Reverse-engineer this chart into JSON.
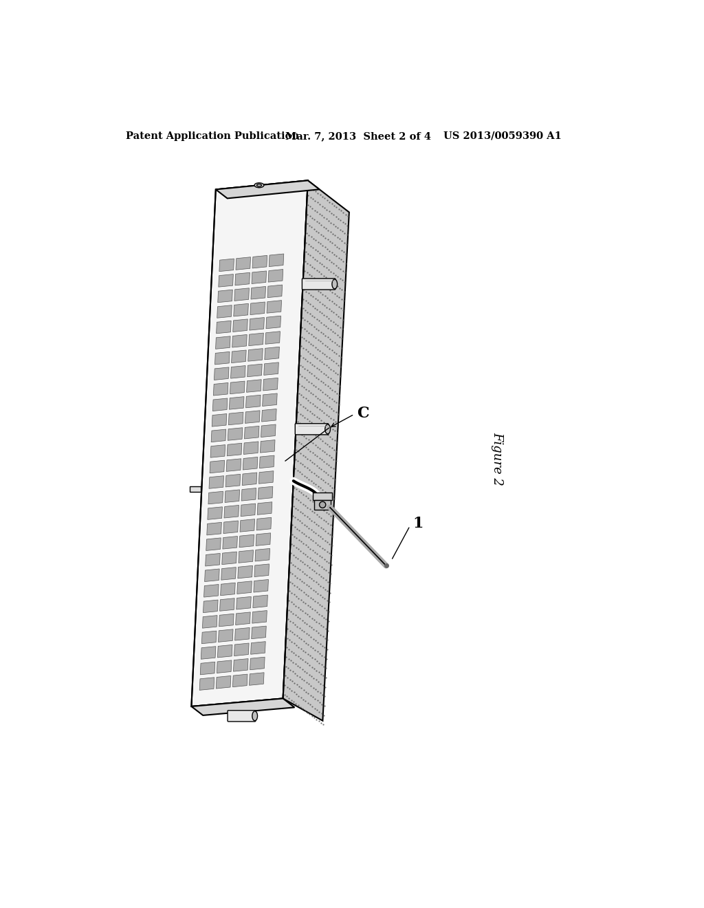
{
  "title_left": "Patent Application Publication",
  "title_mid": "Mar. 7, 2013  Sheet 2 of 4",
  "title_right": "US 2013/0059390 A1",
  "figure_label": "Figure 2",
  "label_C": "C",
  "label_1": "1",
  "background_color": "#ffffff",
  "line_color": "#000000",
  "header_fontsize": 10.5,
  "figure_label_fontsize": 13,
  "panel_front_color": "#f5f5f5",
  "panel_side_color": "#d8d8d8",
  "slot_fill_color": "#b0b0b0",
  "slot_edge_color": "#555555",
  "side_stipple_color": "#888888"
}
